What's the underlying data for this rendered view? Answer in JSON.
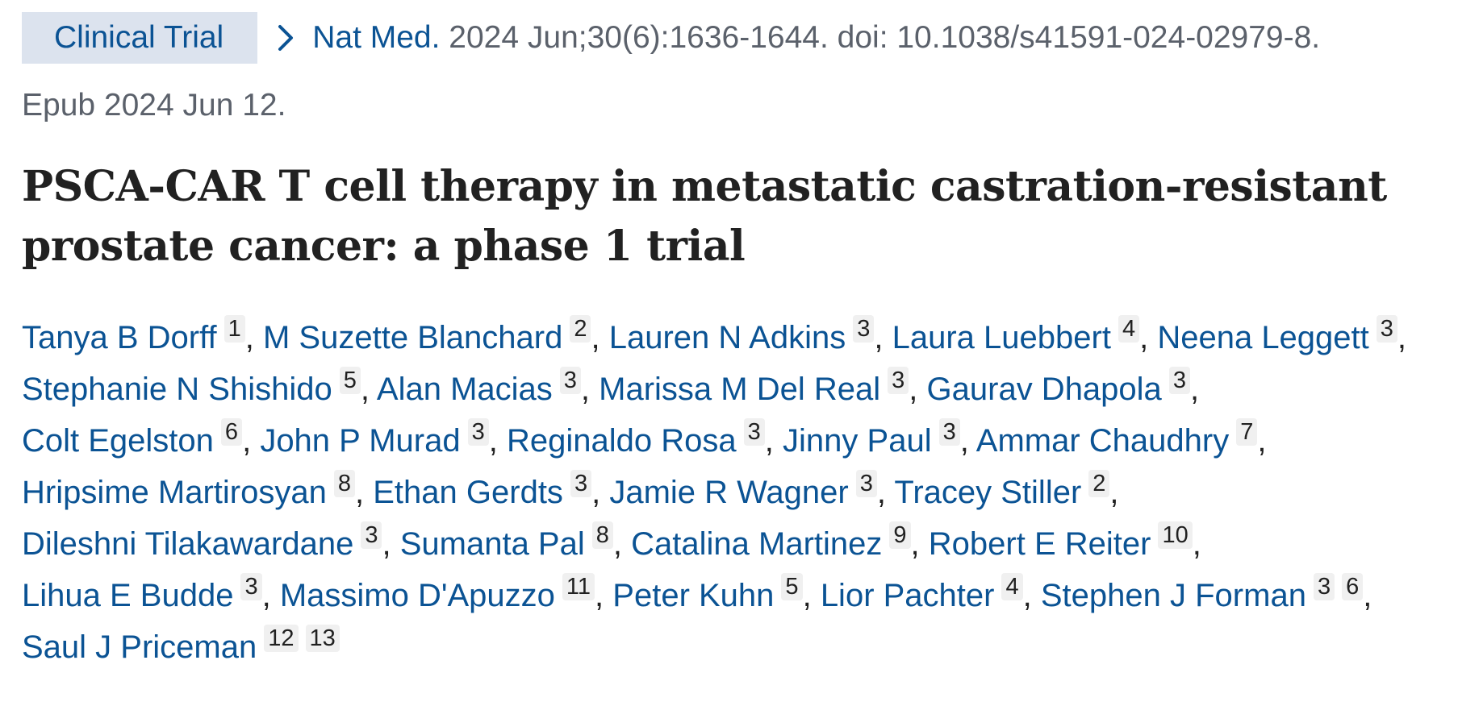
{
  "citation": {
    "badge": "Clinical Trial",
    "journal": "Nat Med.",
    "details": " 2024 Jun;30(6):1636-1644. doi: 10.1038/s41591-024-02979-8.",
    "epub": "Epub 2024 Jun 12."
  },
  "title": "PSCA-CAR T cell therapy in metastatic castration-resistant prostate cancer: a phase 1 trial",
  "authors": [
    {
      "name": "Tanya B Dorff",
      "affs": [
        "1"
      ]
    },
    {
      "name": "M Suzette Blanchard",
      "affs": [
        "2"
      ]
    },
    {
      "name": "Lauren N Adkins",
      "affs": [
        "3"
      ]
    },
    {
      "name": "Laura Luebbert",
      "affs": [
        "4"
      ]
    },
    {
      "name": "Neena Leggett",
      "affs": [
        "3"
      ]
    },
    {
      "name": "Stephanie N Shishido",
      "affs": [
        "5"
      ]
    },
    {
      "name": "Alan Macias",
      "affs": [
        "3"
      ]
    },
    {
      "name": "Marissa M Del Real",
      "affs": [
        "3"
      ]
    },
    {
      "name": "Gaurav Dhapola",
      "affs": [
        "3"
      ]
    },
    {
      "name": "Colt Egelston",
      "affs": [
        "6"
      ]
    },
    {
      "name": "John P Murad",
      "affs": [
        "3"
      ]
    },
    {
      "name": "Reginaldo Rosa",
      "affs": [
        "3"
      ]
    },
    {
      "name": "Jinny Paul",
      "affs": [
        "3"
      ]
    },
    {
      "name": "Ammar Chaudhry",
      "affs": [
        "7"
      ]
    },
    {
      "name": "Hripsime Martirosyan",
      "affs": [
        "8"
      ]
    },
    {
      "name": "Ethan Gerdts",
      "affs": [
        "3"
      ]
    },
    {
      "name": "Jamie R Wagner",
      "affs": [
        "3"
      ]
    },
    {
      "name": "Tracey Stiller",
      "affs": [
        "2"
      ]
    },
    {
      "name": "Dileshni Tilakawardane",
      "affs": [
        "3"
      ]
    },
    {
      "name": "Sumanta Pal",
      "affs": [
        "8"
      ]
    },
    {
      "name": "Catalina Martinez",
      "affs": [
        "9"
      ]
    },
    {
      "name": "Robert E Reiter",
      "affs": [
        "10"
      ]
    },
    {
      "name": "Lihua E Budde",
      "affs": [
        "3"
      ]
    },
    {
      "name": "Massimo D'Apuzzo",
      "affs": [
        "11"
      ]
    },
    {
      "name": "Peter Kuhn",
      "affs": [
        "5"
      ]
    },
    {
      "name": "Lior Pachter",
      "affs": [
        "4"
      ]
    },
    {
      "name": "Stephen J Forman",
      "affs": [
        "3",
        "6"
      ]
    },
    {
      "name": "Saul J Priceman",
      "affs": [
        "12",
        "13"
      ]
    }
  ],
  "colors": {
    "link": "#0b5394",
    "muted": "#5b616b",
    "badge_bg": "#dce3ee",
    "aff_bg": "#f0f0f0"
  }
}
